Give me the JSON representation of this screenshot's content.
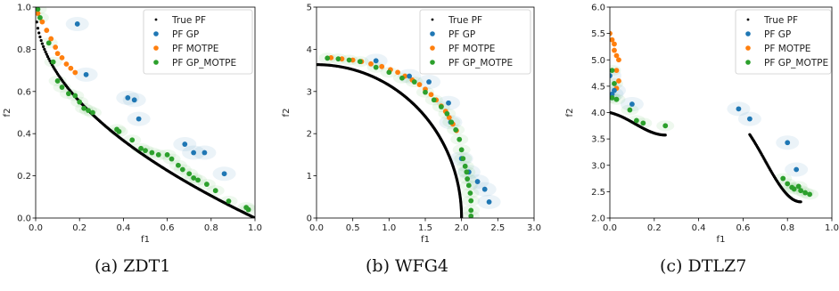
{
  "colors": {
    "true_pf": "#000000",
    "gp": "#1f77b4",
    "motpe": "#ff7f0e",
    "gp_motpe": "#2ca02c"
  },
  "chart_data": [
    {
      "type": "scatter",
      "caption": "(a) ZDT1",
      "xlabel": "f1",
      "ylabel": "f2",
      "xlim": [
        0,
        1
      ],
      "ylim": [
        0,
        1
      ],
      "xticks": [
        "0.0",
        "0.2",
        "0.4",
        "0.6",
        "0.8",
        "1.0"
      ],
      "yticks": [
        "0.0",
        "0.2",
        "0.4",
        "0.6",
        "0.8",
        "1.0"
      ],
      "legend_position": "top-right",
      "true_pf_curve": "zdt1",
      "series": [
        {
          "name": "True PF",
          "points": []
        },
        {
          "name": "PF GP",
          "points": [
            [
              0.19,
              0.92
            ],
            [
              0.23,
              0.68
            ],
            [
              0.42,
              0.57
            ],
            [
              0.45,
              0.56
            ],
            [
              0.47,
              0.47
            ],
            [
              0.68,
              0.35
            ],
            [
              0.72,
              0.31
            ],
            [
              0.77,
              0.31
            ],
            [
              0.86,
              0.21
            ]
          ]
        },
        {
          "name": "PF MOTPE",
          "points": [
            [
              0.01,
              0.97
            ],
            [
              0.03,
              0.93
            ],
            [
              0.05,
              0.89
            ],
            [
              0.07,
              0.85
            ],
            [
              0.09,
              0.81
            ],
            [
              0.1,
              0.78
            ],
            [
              0.12,
              0.76
            ],
            [
              0.14,
              0.73
            ],
            [
              0.16,
              0.71
            ],
            [
              0.18,
              0.69
            ]
          ]
        },
        {
          "name": "PF GP_MOTPE",
          "points": [
            [
              0.01,
              0.99
            ],
            [
              0.02,
              0.95
            ],
            [
              0.06,
              0.83
            ],
            [
              0.08,
              0.74
            ],
            [
              0.1,
              0.65
            ],
            [
              0.12,
              0.62
            ],
            [
              0.15,
              0.59
            ],
            [
              0.18,
              0.58
            ],
            [
              0.2,
              0.55
            ],
            [
              0.22,
              0.52
            ],
            [
              0.24,
              0.51
            ],
            [
              0.26,
              0.5
            ],
            [
              0.37,
              0.42
            ],
            [
              0.38,
              0.41
            ],
            [
              0.44,
              0.37
            ],
            [
              0.48,
              0.33
            ],
            [
              0.5,
              0.32
            ],
            [
              0.53,
              0.31
            ],
            [
              0.56,
              0.3
            ],
            [
              0.6,
              0.3
            ],
            [
              0.62,
              0.28
            ],
            [
              0.65,
              0.25
            ],
            [
              0.67,
              0.23
            ],
            [
              0.7,
              0.21
            ],
            [
              0.72,
              0.19
            ],
            [
              0.74,
              0.18
            ],
            [
              0.78,
              0.16
            ],
            [
              0.82,
              0.13
            ],
            [
              0.88,
              0.08
            ],
            [
              0.96,
              0.05
            ],
            [
              0.97,
              0.04
            ]
          ]
        }
      ]
    },
    {
      "type": "scatter",
      "caption": "(b) WFG4",
      "xlabel": "f1",
      "ylabel": "f2",
      "xlim": [
        0,
        3
      ],
      "ylim": [
        0,
        5.5
      ],
      "xticks": [
        "0.0",
        "0.5",
        "1.0",
        "1.5",
        "2.0",
        "2.5",
        "3.0"
      ],
      "yticks": [
        "0",
        "1",
        "2",
        "3",
        "4",
        "5"
      ],
      "legend_position": "top-right",
      "true_pf_curve": "wfg4",
      "series": [
        {
          "name": "True PF",
          "points": []
        },
        {
          "name": "PF GP",
          "points": [
            [
              0.82,
              4.1
            ],
            [
              1.28,
              3.7
            ],
            [
              1.55,
              3.55
            ],
            [
              1.82,
              3.0
            ],
            [
              1.85,
              2.5
            ],
            [
              2.0,
              1.55
            ],
            [
              2.1,
              1.2
            ],
            [
              2.22,
              0.95
            ],
            [
              2.32,
              0.75
            ],
            [
              2.38,
              0.42
            ]
          ]
        },
        {
          "name": "PF MOTPE",
          "points": [
            [
              0.2,
              4.18
            ],
            [
              0.35,
              4.15
            ],
            [
              0.5,
              4.12
            ],
            [
              0.62,
              4.08
            ],
            [
              0.75,
              4.02
            ],
            [
              0.9,
              3.95
            ],
            [
              1.02,
              3.87
            ],
            [
              1.12,
              3.8
            ],
            [
              1.22,
              3.7
            ],
            [
              1.32,
              3.6
            ],
            [
              1.42,
              3.48
            ],
            [
              1.5,
              3.36
            ],
            [
              1.58,
              3.22
            ],
            [
              1.65,
              3.08
            ],
            [
              1.72,
              2.92
            ],
            [
              1.78,
              2.78
            ],
            [
              1.83,
              2.62
            ],
            [
              1.88,
              2.45
            ],
            [
              1.93,
              2.28
            ]
          ]
        },
        {
          "name": "PF GP_MOTPE",
          "points": [
            [
              0.15,
              4.17
            ],
            [
              0.3,
              4.15
            ],
            [
              0.45,
              4.12
            ],
            [
              0.6,
              4.08
            ],
            [
              0.82,
              3.93
            ],
            [
              1.0,
              3.8
            ],
            [
              1.18,
              3.65
            ],
            [
              1.35,
              3.55
            ],
            [
              1.5,
              3.28
            ],
            [
              1.62,
              3.08
            ],
            [
              1.72,
              2.9
            ],
            [
              1.8,
              2.72
            ],
            [
              1.86,
              2.5
            ],
            [
              1.92,
              2.3
            ],
            [
              1.97,
              2.05
            ],
            [
              2.0,
              1.78
            ],
            [
              2.02,
              1.55
            ],
            [
              2.05,
              1.35
            ],
            [
              2.07,
              1.2
            ],
            [
              2.08,
              1.02
            ],
            [
              2.1,
              0.85
            ],
            [
              2.12,
              0.65
            ],
            [
              2.13,
              0.45
            ],
            [
              2.13,
              0.2
            ],
            [
              2.13,
              0.05
            ]
          ]
        }
      ]
    },
    {
      "type": "scatter",
      "caption": "(c) DTLZ7",
      "xlabel": "f1",
      "ylabel": "f2",
      "xlim": [
        0,
        1
      ],
      "ylim": [
        2.0,
        6.0
      ],
      "xticks": [
        "0.0",
        "0.2",
        "0.4",
        "0.6",
        "0.8",
        "1.0"
      ],
      "yticks": [
        "2.0",
        "2.5",
        "3.0",
        "3.5",
        "4.0",
        "4.5",
        "5.0",
        "5.5",
        "6.0"
      ],
      "legend_position": "top-right",
      "true_pf_curve": "dtlz7",
      "series": [
        {
          "name": "True PF",
          "points": []
        },
        {
          "name": "PF GP",
          "points": [
            [
              0.0,
              4.7
            ],
            [
              0.01,
              4.35
            ],
            [
              0.02,
              4.42
            ],
            [
              0.1,
              4.16
            ],
            [
              0.58,
              4.07
            ],
            [
              0.63,
              3.88
            ],
            [
              0.8,
              3.43
            ],
            [
              0.84,
              2.92
            ]
          ]
        },
        {
          "name": "PF MOTPE",
          "points": [
            [
              0.0,
              5.5
            ],
            [
              0.01,
              5.38
            ],
            [
              0.02,
              5.3
            ],
            [
              0.02,
              5.18
            ],
            [
              0.03,
              5.08
            ],
            [
              0.04,
              5.0
            ],
            [
              0.03,
              4.8
            ],
            [
              0.04,
              4.6
            ],
            [
              0.03,
              4.46
            ]
          ]
        },
        {
          "name": "PF GP_MOTPE",
          "points": [
            [
              0.01,
              4.8
            ],
            [
              0.02,
              4.55
            ],
            [
              0.01,
              4.28
            ],
            [
              0.03,
              4.25
            ],
            [
              0.09,
              4.05
            ],
            [
              0.12,
              3.85
            ],
            [
              0.15,
              3.8
            ],
            [
              0.25,
              3.75
            ],
            [
              0.78,
              2.75
            ],
            [
              0.8,
              2.65
            ],
            [
              0.83,
              2.55
            ],
            [
              0.86,
              2.52
            ],
            [
              0.88,
              2.48
            ],
            [
              0.9,
              2.45
            ],
            [
              0.85,
              2.6
            ],
            [
              0.82,
              2.58
            ]
          ]
        }
      ]
    }
  ]
}
